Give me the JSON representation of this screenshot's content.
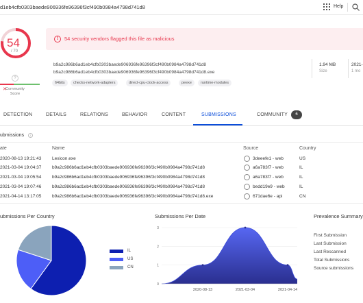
{
  "topbar": {
    "hash": "d1eb4cfb0303baede906936fe96396f3cf490b0984a4798d741d8",
    "help_label": "Help"
  },
  "score": {
    "value": "54",
    "total": "/ 70",
    "detection_ratio": 0.771,
    "community_score_label": "Community Score",
    "community_help": "?",
    "community_mark": "✕",
    "colors": {
      "malicious": "#e8374d",
      "track": "#f1d3d7",
      "harmless": "#6ec06e"
    }
  },
  "alert": {
    "text": "54 security vendors flagged this file as malicious",
    "icon": "!",
    "color": "#e8374d"
  },
  "file": {
    "hash": "b9a2c986b6ad1eb4cfb0303baede906936fe96396f3cf490b0984a4798d741d8",
    "name": "b9a2c986b6ad1eb4cfb0303baede906936fe96396f3cf490b0984a4798d741d8.exe",
    "tags": [
      "64bits",
      "checks-network-adapters",
      "direct-cpu-clock-access",
      "peexe",
      "runtime-modules"
    ],
    "size_value": "1.94 MB",
    "size_label": "Size",
    "date_value": "2021-",
    "date_label": "1 mo"
  },
  "tabs": [
    {
      "label": "DETECTION",
      "active": false
    },
    {
      "label": "DETAILS",
      "active": false
    },
    {
      "label": "RELATIONS",
      "active": false
    },
    {
      "label": "BEHAVIOR",
      "active": false
    },
    {
      "label": "CONTENT",
      "active": false
    },
    {
      "label": "SUBMISSIONS",
      "active": true
    },
    {
      "label": "COMMUNITY",
      "active": false
    }
  ],
  "community_count": "6",
  "submissions": {
    "title": "ubmissions",
    "info_icon": "i",
    "headers": {
      "date": "ate",
      "name": "Name",
      "source": "Source",
      "country": "Country"
    },
    "rows": [
      {
        "date": "2020-08-13 19:21:43",
        "name": "Lexicon.exe",
        "source": "3deeefe1 - web",
        "country": "US"
      },
      {
        "date": "2021-03-04 19:04:37",
        "name": "b9a2c986b6ad1eb4cfb0303baede906936fe96396f3cf490b0984a4798d741d8",
        "source": "a6a783f7 - web",
        "country": "IL"
      },
      {
        "date": "2021-03-04 19:05:54",
        "name": "b9a2c986b6ad1eb4cfb0303baede906936fe96396f3cf490b0984a4798d741d8",
        "source": "a6a783f7 - web",
        "country": "IL"
      },
      {
        "date": "2021-03-04 19:07:46",
        "name": "b9a2c986b6ad1eb4cfb0303baede906936fe96396f3cf490b0984a4798d741d8",
        "source": "bedd19e9 - web",
        "country": "IL"
      },
      {
        "date": "2021-04-14 13:17:05",
        "name": "b9a2c986b6ad1eb4cfb0303baede906936fe96396f3cf490b0984a4798d741d8.exe",
        "source": "671dae6e - api",
        "country": "CN"
      }
    ]
  },
  "panels": {
    "country_title": "ubmissions Per Country",
    "date_title": "Submissions Per Date",
    "prevalence_title": "Prevalence Summary",
    "prevalence_items": [
      "First Submission",
      "Last Submission",
      "Last Rescanned",
      "Total Submissions",
      "Source submissions"
    ]
  },
  "chart_data": [
    {
      "type": "pie",
      "title": "Submissions Per Country",
      "categories": [
        "IL",
        "US",
        "CN"
      ],
      "values": [
        3,
        1,
        1
      ],
      "colors": [
        "#0d1fb0",
        "#4d5ef7",
        "#8aa4bd"
      ],
      "legend": "right"
    },
    {
      "type": "area",
      "title": "Submissions Per Date",
      "x": [
        "2020-08-13",
        "2021-03-04",
        "2021-04-14"
      ],
      "values": [
        1,
        3,
        1
      ],
      "ylim": [
        0,
        3
      ],
      "yticks": [
        "0",
        "1",
        "2",
        "3"
      ],
      "grid": true,
      "color_top": "#5767f2",
      "color_bottom": "#2a2f8f"
    }
  ]
}
